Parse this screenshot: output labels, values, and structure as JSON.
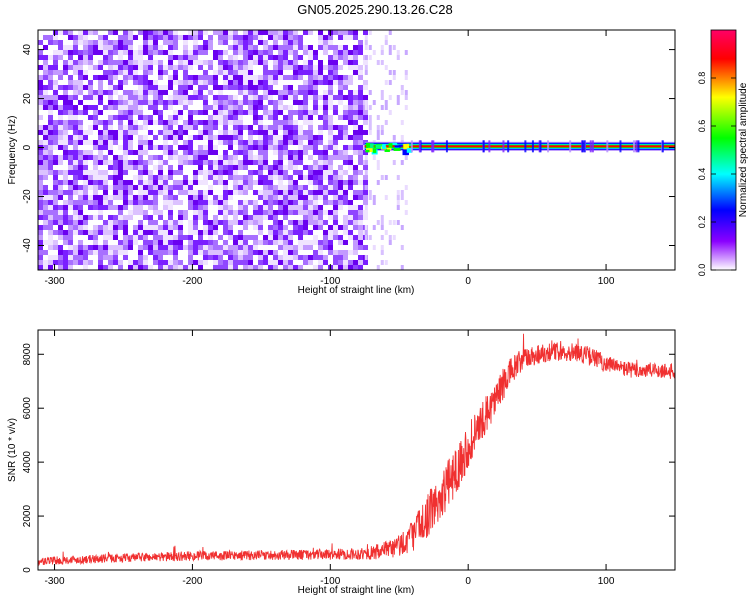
{
  "figure": {
    "title": "GN05.2025.290.13.26.C28"
  },
  "chart_data": [
    {
      "type": "heatmap",
      "xlabel": "Height of straight line (km)",
      "ylabel": "Frequency (Hz)",
      "xlim": [
        -312,
        150
      ],
      "ylim": [
        -50,
        48
      ],
      "xticks": [
        -300,
        -200,
        -100,
        0,
        100
      ],
      "yticks": [
        -40,
        -20,
        0,
        20,
        40
      ],
      "grid": false,
      "noise_region_x": [
        -312,
        -75
      ],
      "sparse_noise_region_x": [
        -75,
        -45
      ],
      "signal_line": {
        "x_start": -75,
        "x_end": 150,
        "frequency": 0.5,
        "peak_amplitude": 1.0
      },
      "colorbar": {
        "label": "Normalized spectral amplitude",
        "range": [
          0,
          1
        ],
        "ticks": [
          0.0,
          0.2,
          0.4,
          0.6,
          0.8
        ],
        "colors": [
          "#ffffff",
          "#8a00ff",
          "#0000ff",
          "#00ffff",
          "#00ff00",
          "#ffff00",
          "#ff0000",
          "#ff0066"
        ],
        "placement": "right"
      }
    },
    {
      "type": "line",
      "xlabel": "Height of straight line (km)",
      "ylabel": "SNR (10 * v/v)",
      "xlim": [
        -312,
        150
      ],
      "ylim": [
        0,
        8900
      ],
      "xticks": [
        -300,
        -200,
        -100,
        0,
        100
      ],
      "yticks": [
        0,
        2000,
        4000,
        6000,
        8000
      ],
      "grid": false,
      "series": [
        {
          "color": "#f03030",
          "x": [
            -312,
            -300,
            -250,
            -200,
            -150,
            -100,
            -75,
            -60,
            -50,
            -40,
            -30,
            -20,
            -10,
            0,
            10,
            20,
            30,
            40,
            50,
            60,
            70,
            80,
            90,
            100,
            110,
            120,
            130,
            140,
            150
          ],
          "y": [
            300,
            350,
            450,
            520,
            550,
            580,
            600,
            700,
            900,
            1300,
            2000,
            2700,
            3600,
            4600,
            5500,
            6400,
            7300,
            7800,
            8000,
            8100,
            8100,
            8050,
            7900,
            7650,
            7500,
            7400,
            7400,
            7400,
            7350
          ],
          "noise_amplitude": [
            150,
            150,
            160,
            180,
            180,
            200,
            220,
            350,
            450,
            600,
            800,
            900,
            900,
            850,
            700,
            650,
            550,
            450,
            400,
            350,
            350,
            350,
            350,
            350,
            300,
            300,
            300,
            300,
            300
          ]
        }
      ]
    }
  ]
}
